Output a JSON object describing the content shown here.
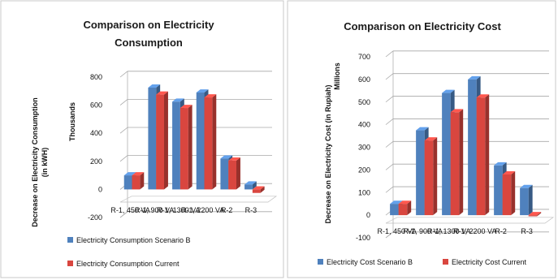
{
  "colors": {
    "series_a": "#4f81bd",
    "series_b": "#d9463f"
  },
  "chart_data": [
    {
      "type": "bar",
      "title_lines": [
        "Comparison on Electricity",
        "Consumption"
      ],
      "ylabel_lines": [
        "Decrease on Electricity Consumption",
        "(in kWH)"
      ],
      "yunit": "Thousands",
      "xlabel": "",
      "categories": [
        "R-1, 450 VA",
        "R-1, 900 VA",
        "R-1, 1300 VA",
        "R-1, 2200 VA",
        "R-2",
        "R-3"
      ],
      "ylim": [
        -200,
        800
      ],
      "yticks": [
        -200,
        0,
        200,
        400,
        600,
        800
      ],
      "grid": true,
      "legend_position": "bottom",
      "series": [
        {
          "name": "Electricity Consumption  Scenario B",
          "values": [
            100,
            725,
            625,
            690,
            220,
            35
          ]
        },
        {
          "name": "Electricity Consumption  Current",
          "values": [
            100,
            675,
            580,
            655,
            205,
            -25
          ]
        }
      ]
    },
    {
      "type": "bar",
      "title_lines": [
        "Comparison on Electricity  Cost"
      ],
      "ylabel_lines": [
        "Decrease on Electricity Cost  (in Rupiah)"
      ],
      "yunit": "Millions",
      "xlabel": "",
      "categories": [
        "R-1, 450 VA",
        "R-1, 900 VA",
        "R-1, 1300 VA",
        "R-1, 2200 VA",
        "R-2",
        "R-3"
      ],
      "ylim": [
        -100,
        700
      ],
      "yticks": [
        -100,
        0,
        100,
        200,
        300,
        400,
        500,
        600,
        700
      ],
      "grid": true,
      "legend_position": "bottom",
      "series": [
        {
          "name": "Electricity Cost Scenario B",
          "values": [
            50,
            375,
            540,
            600,
            220,
            120
          ]
        },
        {
          "name": "Electricity Cost Current",
          "values": [
            50,
            330,
            455,
            520,
            180,
            -5
          ]
        }
      ]
    }
  ]
}
